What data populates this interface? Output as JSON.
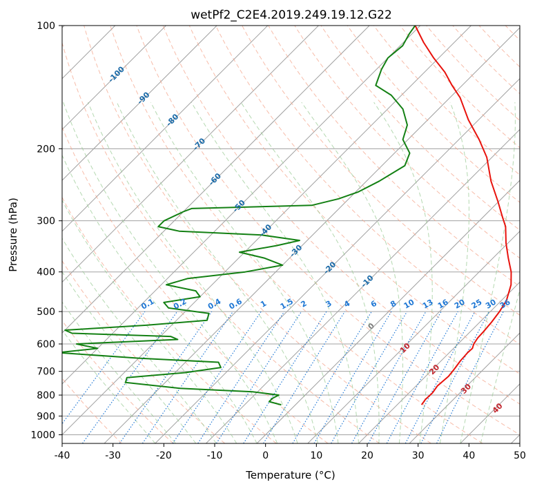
{
  "chart_data": {
    "type": "line",
    "subtype": "skew-T log-p diagram",
    "title": "wetPf2_C2E4.2019.249.19.12.G22",
    "xlabel": "Temperature (°C)",
    "ylabel": "Pressure (hPa)",
    "xlim": [
      -40,
      50
    ],
    "ylim": [
      1050,
      100
    ],
    "y_scale": "log",
    "x_ticks": [
      "-40",
      "-30",
      "-20",
      "-10",
      "0",
      "10",
      "20",
      "30",
      "40",
      "50"
    ],
    "y_ticks": [
      "100",
      "200",
      "300",
      "400",
      "500",
      "600",
      "700",
      "800",
      "900",
      "1000"
    ],
    "grid": true,
    "colors": {
      "temperature": "#e8120c",
      "dewpoint": "#138013",
      "isotherm": "#a0a0a0",
      "dry_adiabat": "#f4a68c",
      "moist_adiabat": "#9bcb96",
      "mixing_ratio": "#1f77d4",
      "lcl_label": "#c2262e",
      "isotherm_label": "#1a6aa8"
    },
    "series": [
      {
        "name": "",
        "role": "temperature",
        "points": [
          {
            "p": 845,
            "t": 24.8
          },
          {
            "p": 820,
            "t": 24.5
          },
          {
            "p": 790,
            "t": 24.6
          },
          {
            "p": 760,
            "t": 24.2
          },
          {
            "p": 720,
            "t": 24.5
          },
          {
            "p": 690,
            "t": 24.2
          },
          {
            "p": 660,
            "t": 23.8
          },
          {
            "p": 630,
            "t": 23.6
          },
          {
            "p": 615,
            "t": 23.7
          },
          {
            "p": 600,
            "t": 23.1
          },
          {
            "p": 580,
            "t": 22.7
          },
          {
            "p": 560,
            "t": 22.6
          },
          {
            "p": 530,
            "t": 22.3
          },
          {
            "p": 500,
            "t": 21.8
          },
          {
            "p": 470,
            "t": 21.0
          },
          {
            "p": 430,
            "t": 18.8
          },
          {
            "p": 400,
            "t": 16.3
          },
          {
            "p": 370,
            "t": 13.0
          },
          {
            "p": 340,
            "t": 9.6
          },
          {
            "p": 310,
            "t": 6.3
          },
          {
            "p": 295,
            "t": 4.0
          },
          {
            "p": 270,
            "t": 0.0
          },
          {
            "p": 240,
            "t": -5.5
          },
          {
            "p": 210,
            "t": -11.0
          },
          {
            "p": 190,
            "t": -16.0
          },
          {
            "p": 170,
            "t": -22.0
          },
          {
            "p": 150,
            "t": -28.0
          },
          {
            "p": 140,
            "t": -32.0
          },
          {
            "p": 130,
            "t": -36.0
          },
          {
            "p": 120,
            "t": -41.0
          },
          {
            "p": 110,
            "t": -46.0
          },
          {
            "p": 100,
            "t": -51.0
          }
        ]
      },
      {
        "name": "",
        "role": "dewpoint",
        "points": [
          {
            "p": 845,
            "t": -2.8
          },
          {
            "p": 830,
            "t": -5.8
          },
          {
            "p": 815,
            "t": -5.8
          },
          {
            "p": 800,
            "t": -5.2
          },
          {
            "p": 785,
            "t": -11.0
          },
          {
            "p": 770,
            "t": -26.0
          },
          {
            "p": 745,
            "t": -37.8
          },
          {
            "p": 725,
            "t": -38.5
          },
          {
            "p": 705,
            "t": -28.0
          },
          {
            "p": 685,
            "t": -22.0
          },
          {
            "p": 665,
            "t": -23.5
          },
          {
            "p": 650,
            "t": -40.0
          },
          {
            "p": 630,
            "t": -57.0
          },
          {
            "p": 615,
            "t": -50.0
          },
          {
            "p": 600,
            "t": -55.0
          },
          {
            "p": 585,
            "t": -36.0
          },
          {
            "p": 575,
            "t": -38.0
          },
          {
            "p": 565,
            "t": -58.0
          },
          {
            "p": 555,
            "t": -60.0
          },
          {
            "p": 540,
            "t": -45.0
          },
          {
            "p": 525,
            "t": -34.0
          },
          {
            "p": 505,
            "t": -35.0
          },
          {
            "p": 490,
            "t": -44.0
          },
          {
            "p": 475,
            "t": -46.0
          },
          {
            "p": 460,
            "t": -40.0
          },
          {
            "p": 445,
            "t": -42.0
          },
          {
            "p": 430,
            "t": -49.0
          },
          {
            "p": 415,
            "t": -46.0
          },
          {
            "p": 400,
            "t": -36.0
          },
          {
            "p": 385,
            "t": -30.0
          },
          {
            "p": 370,
            "t": -35.0
          },
          {
            "p": 358,
            "t": -41.0
          },
          {
            "p": 345,
            "t": -35.0
          },
          {
            "p": 335,
            "t": -31.5
          },
          {
            "p": 325,
            "t": -40.0
          },
          {
            "p": 318,
            "t": -57.0
          },
          {
            "p": 310,
            "t": -62.0
          },
          {
            "p": 300,
            "t": -62.0
          },
          {
            "p": 285,
            "t": -60.0
          },
          {
            "p": 280,
            "t": -59.0
          },
          {
            "p": 275,
            "t": -36.0
          },
          {
            "p": 265,
            "t": -32.0
          },
          {
            "p": 255,
            "t": -29.5
          },
          {
            "p": 240,
            "t": -27.5
          },
          {
            "p": 220,
            "t": -25.5
          },
          {
            "p": 205,
            "t": -27.0
          },
          {
            "p": 190,
            "t": -31.0
          },
          {
            "p": 175,
            "t": -33.0
          },
          {
            "p": 160,
            "t": -37.0
          },
          {
            "p": 148,
            "t": -42.0
          },
          {
            "p": 140,
            "t": -47.0
          },
          {
            "p": 128,
            "t": -49.0
          },
          {
            "p": 120,
            "t": -50.0
          },
          {
            "p": 112,
            "t": -49.5
          },
          {
            "p": 105,
            "t": -50.5
          },
          {
            "p": 100,
            "t": -51.0
          }
        ]
      }
    ],
    "mixing_ratio_labels": [
      "0.1",
      "0.2",
      "0.4",
      "0.6",
      "1",
      "1.5",
      "2",
      "3",
      "4",
      "6",
      "8",
      "10",
      "13",
      "16",
      "20",
      "25",
      "30",
      "36"
    ],
    "mixing_ratio_values": [
      0.1,
      0.2,
      0.4,
      0.6,
      1,
      1.5,
      2,
      3,
      4,
      6,
      8,
      10,
      13,
      16,
      20,
      25,
      30,
      36
    ],
    "isotherm_labels": [
      "-100",
      "-90",
      "-80",
      "-70",
      "-60",
      "-50",
      "-40",
      "-30",
      "-20",
      "-10",
      "0"
    ],
    "isotherm_values": [
      -100,
      -90,
      -80,
      -70,
      -60,
      -50,
      -40,
      -30,
      -20,
      -10,
      0
    ],
    "lcl_labels": [
      "10",
      "20",
      "30",
      "40"
    ],
    "lcl_values": [
      10,
      20,
      30,
      40
    ]
  }
}
